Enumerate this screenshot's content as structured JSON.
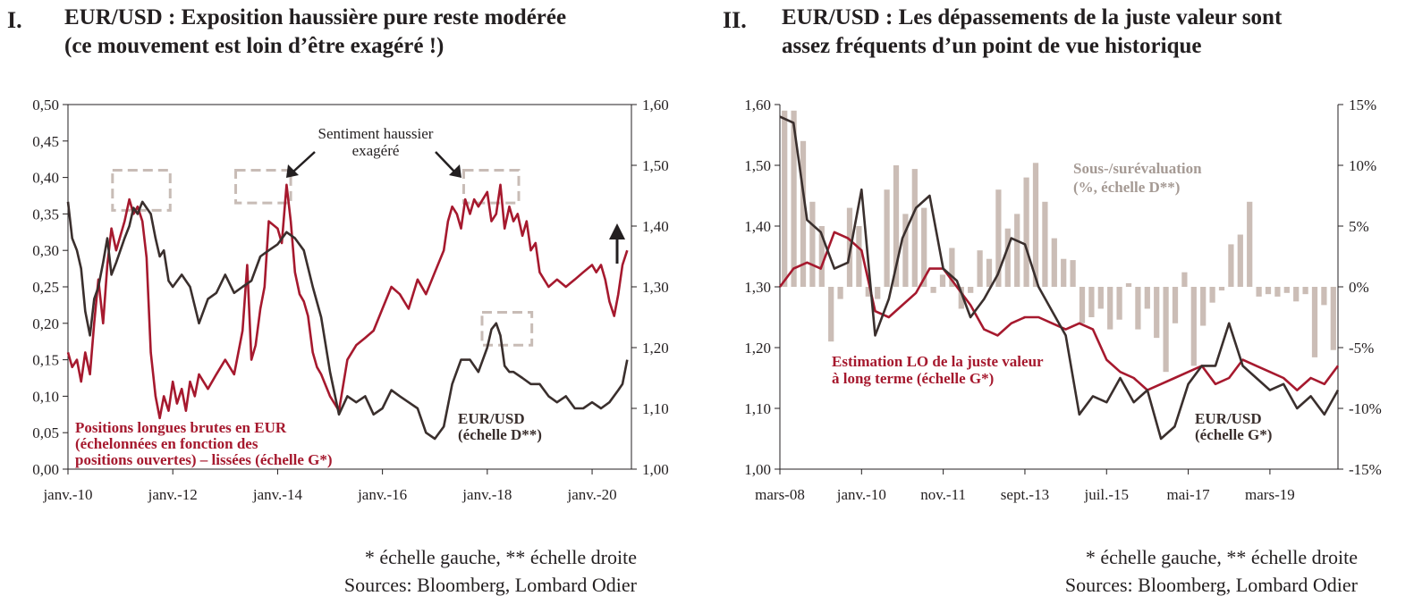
{
  "panels": [
    {
      "number": "I.",
      "title_lines": [
        "EUR/USD : Exposition haussière pure reste modérée",
        "(ce mouvement est loin d’être exagéré !)"
      ],
      "notes": [
        "* échelle gauche, ** échelle droite",
        "Sources: Bloomberg, Lombard Odier"
      ]
    },
    {
      "number": "II.",
      "title_lines": [
        "EUR/USD : Les dépassements de la juste valeur sont",
        "assez fréquents d’un point de vue historique"
      ],
      "notes": [
        "* échelle gauche, ** échelle droite",
        "Sources: Bloomberg, Lombard Odier"
      ]
    }
  ],
  "colors": {
    "red": "#a6192e",
    "dark": "#3a2f2d",
    "bar": "#cbbdb6",
    "dash": "#c8bcb6",
    "axis": "#231f20"
  },
  "chart_data": [
    {
      "type": "line",
      "title": "EUR/USD : Exposition haussière pure reste modérée (ce mouvement est loin d’être exagéré !)",
      "x_tick_labels": [
        "janv.-10",
        "janv.-12",
        "janv.-14",
        "janv.-16",
        "janv.-18",
        "janv.-20"
      ],
      "x_tick_years": [
        2010,
        2012,
        2014,
        2016,
        2018,
        2020
      ],
      "xlim": [
        2010.0,
        2020.75
      ],
      "y_left": {
        "ylim": [
          0,
          0.5
        ],
        "ticks": [
          "0,00",
          "0,05",
          "0,10",
          "0,15",
          "0,20",
          "0,25",
          "0,30",
          "0,35",
          "0,40",
          "0,45",
          "0,50"
        ]
      },
      "y_right": {
        "ylim": [
          1.0,
          1.6
        ],
        "ticks": [
          "1,00",
          "1,10",
          "1,20",
          "1,30",
          "1,40",
          "1,50",
          "1,60"
        ]
      },
      "grid": false,
      "series": [
        {
          "name": "Positions longues brutes en EUR (échelonnées en fonction des positions ouvertes) – lissées (échelle G*)",
          "axis": "left",
          "color_key": "red",
          "x": [
            2010.0,
            2010.08,
            2010.17,
            2010.25,
            2010.33,
            2010.42,
            2010.5,
            2010.58,
            2010.67,
            2010.75,
            2010.83,
            2010.92,
            2011.0,
            2011.08,
            2011.17,
            2011.25,
            2011.33,
            2011.42,
            2011.5,
            2011.58,
            2011.67,
            2011.75,
            2011.83,
            2011.92,
            2012.0,
            2012.08,
            2012.17,
            2012.25,
            2012.33,
            2012.42,
            2012.5,
            2012.67,
            2012.83,
            2013.0,
            2013.17,
            2013.33,
            2013.42,
            2013.5,
            2013.58,
            2013.67,
            2013.75,
            2013.83,
            2014.0,
            2014.08,
            2014.17,
            2014.25,
            2014.33,
            2014.42,
            2014.5,
            2014.58,
            2014.67,
            2014.75,
            2014.83,
            2015.0,
            2015.17,
            2015.33,
            2015.5,
            2015.67,
            2015.83,
            2016.0,
            2016.17,
            2016.33,
            2016.5,
            2016.67,
            2016.83,
            2017.0,
            2017.17,
            2017.25,
            2017.33,
            2017.42,
            2017.5,
            2017.58,
            2017.67,
            2017.75,
            2017.83,
            2018.0,
            2018.08,
            2018.17,
            2018.25,
            2018.33,
            2018.42,
            2018.5,
            2018.58,
            2018.67,
            2018.75,
            2018.83,
            2018.92,
            2019.0,
            2019.17,
            2019.33,
            2019.5,
            2019.67,
            2019.83,
            2020.0,
            2020.08,
            2020.17,
            2020.25,
            2020.33,
            2020.42,
            2020.5,
            2020.58,
            2020.67
          ],
          "y": [
            0.16,
            0.14,
            0.15,
            0.12,
            0.16,
            0.13,
            0.2,
            0.26,
            0.2,
            0.28,
            0.33,
            0.3,
            0.32,
            0.34,
            0.37,
            0.35,
            0.36,
            0.34,
            0.29,
            0.16,
            0.1,
            0.07,
            0.1,
            0.08,
            0.12,
            0.09,
            0.11,
            0.08,
            0.12,
            0.1,
            0.13,
            0.11,
            0.13,
            0.15,
            0.13,
            0.19,
            0.28,
            0.15,
            0.17,
            0.22,
            0.25,
            0.34,
            0.33,
            0.31,
            0.39,
            0.34,
            0.27,
            0.24,
            0.23,
            0.21,
            0.16,
            0.14,
            0.13,
            0.1,
            0.08,
            0.15,
            0.17,
            0.18,
            0.19,
            0.22,
            0.25,
            0.24,
            0.22,
            0.26,
            0.24,
            0.27,
            0.3,
            0.34,
            0.36,
            0.35,
            0.33,
            0.37,
            0.35,
            0.37,
            0.36,
            0.38,
            0.34,
            0.35,
            0.39,
            0.33,
            0.36,
            0.34,
            0.35,
            0.32,
            0.34,
            0.3,
            0.31,
            0.27,
            0.25,
            0.26,
            0.25,
            0.26,
            0.27,
            0.28,
            0.27,
            0.28,
            0.26,
            0.23,
            0.21,
            0.24,
            0.28,
            0.3
          ]
        },
        {
          "name": "EUR/USD (échelle D**)",
          "axis": "right",
          "color_key": "dark",
          "x": [
            2010.0,
            2010.08,
            2010.17,
            2010.25,
            2010.33,
            2010.42,
            2010.5,
            2010.58,
            2010.67,
            2010.75,
            2010.83,
            2010.92,
            2011.0,
            2011.08,
            2011.17,
            2011.25,
            2011.33,
            2011.42,
            2011.5,
            2011.58,
            2011.67,
            2011.75,
            2011.83,
            2011.92,
            2012.0,
            2012.17,
            2012.33,
            2012.5,
            2012.67,
            2012.83,
            2013.0,
            2013.17,
            2013.33,
            2013.5,
            2013.67,
            2013.83,
            2014.0,
            2014.17,
            2014.33,
            2014.5,
            2014.67,
            2014.83,
            2015.0,
            2015.17,
            2015.33,
            2015.5,
            2015.67,
            2015.83,
            2016.0,
            2016.17,
            2016.33,
            2016.5,
            2016.67,
            2016.83,
            2017.0,
            2017.17,
            2017.33,
            2017.5,
            2017.67,
            2017.83,
            2018.0,
            2018.08,
            2018.17,
            2018.25,
            2018.33,
            2018.42,
            2018.5,
            2018.67,
            2018.83,
            2019.0,
            2019.17,
            2019.33,
            2019.5,
            2019.67,
            2019.83,
            2020.0,
            2020.17,
            2020.33,
            2020.5,
            2020.58,
            2020.67
          ],
          "y": [
            1.44,
            1.38,
            1.36,
            1.33,
            1.26,
            1.22,
            1.28,
            1.3,
            1.34,
            1.38,
            1.32,
            1.34,
            1.36,
            1.38,
            1.4,
            1.43,
            1.42,
            1.44,
            1.43,
            1.42,
            1.38,
            1.35,
            1.36,
            1.31,
            1.3,
            1.32,
            1.3,
            1.24,
            1.28,
            1.29,
            1.32,
            1.29,
            1.3,
            1.31,
            1.35,
            1.36,
            1.37,
            1.39,
            1.38,
            1.36,
            1.3,
            1.25,
            1.16,
            1.09,
            1.12,
            1.11,
            1.12,
            1.09,
            1.1,
            1.13,
            1.12,
            1.11,
            1.1,
            1.06,
            1.05,
            1.07,
            1.14,
            1.18,
            1.18,
            1.16,
            1.2,
            1.23,
            1.24,
            1.22,
            1.17,
            1.16,
            1.16,
            1.15,
            1.14,
            1.14,
            1.12,
            1.11,
            1.12,
            1.1,
            1.1,
            1.11,
            1.1,
            1.11,
            1.13,
            1.14,
            1.18
          ]
        }
      ],
      "annotations": [
        "Sentiment haussier exagéré"
      ],
      "legend_labels": [
        [
          "Positions longues brutes en EUR",
          "(échelonnées en fonction des",
          "positions ouvertes) – lissées (échelle G*)"
        ],
        [
          "EUR/USD",
          "(échelle D**)"
        ]
      ],
      "highlight_boxes": [
        {
          "x": [
            2010.85,
            2011.95
          ],
          "y": [
            0.355,
            0.41
          ]
        },
        {
          "x": [
            2013.2,
            2014.25
          ],
          "y": [
            0.365,
            0.41
          ]
        },
        {
          "x": [
            2017.55,
            2018.6
          ],
          "y": [
            0.365,
            0.41
          ]
        },
        {
          "x": [
            2017.9,
            2018.85
          ],
          "y": [
            0.17,
            0.215
          ]
        }
      ]
    },
    {
      "type": "bar+line",
      "title": "EUR/USD : Les dépassements de la juste valeur sont assez fréquents d’un point de vue historique",
      "x_tick_labels": [
        "mars-08",
        "janv.-10",
        "nov.-11",
        "sept.-13",
        "juil.-15",
        "mai-17",
        "mars-19"
      ],
      "x_tick_positions": [
        0,
        6,
        12,
        18,
        24,
        30,
        36
      ],
      "xlim": [
        0,
        41
      ],
      "y_left": {
        "ylim": [
          1.0,
          1.6
        ],
        "ticks": [
          "1,00",
          "1,10",
          "1,20",
          "1,30",
          "1,40",
          "1,50",
          "1,60"
        ]
      },
      "y_right": {
        "ylim": [
          -15,
          15
        ],
        "ticks": [
          "-15%",
          "-10%",
          "-5%",
          "0%",
          "5%",
          "10%",
          "15%"
        ]
      },
      "grid": false,
      "bars": {
        "name": "Sous-/surévaluation (%, échelle D**)",
        "axis": "right",
        "color_key": "bar",
        "values": [
          14.5,
          14.5,
          12,
          7,
          5,
          -4.5,
          -1,
          6.5,
          5,
          -0.8,
          -1,
          8,
          10,
          6,
          9.7,
          6.5,
          -0.5,
          1,
          3.2,
          -1.8,
          -0.5,
          3,
          2.3,
          8,
          4.8,
          6,
          9,
          10.2,
          7,
          4,
          2.3,
          2.2,
          -3,
          -2.5,
          -1.8,
          -3.5,
          -2.7,
          0.3,
          -3.5,
          -1.8,
          -4.2,
          -7,
          -3,
          1.2,
          -6.5,
          -3.2,
          -1.3,
          -0.3,
          3.5,
          4.3,
          7,
          -0.8,
          -0.6,
          -0.8,
          -0.5,
          -1.2,
          -0.6,
          -5.8,
          -1.5,
          -5.2
        ]
      },
      "series": [
        {
          "name": "Estimation LO de la juste valeur à long terme (échelle G*)",
          "axis": "left",
          "color_key": "red",
          "x": [
            0,
            1,
            2,
            3,
            4,
            5,
            6,
            7,
            8,
            9,
            10,
            11,
            12,
            13,
            14,
            15,
            16,
            17,
            18,
            19,
            20,
            21,
            22,
            23,
            24,
            25,
            26,
            27,
            28,
            29,
            30,
            31,
            32,
            33,
            34,
            35,
            36,
            37,
            38,
            39,
            40,
            41
          ],
          "y": [
            1.3,
            1.33,
            1.34,
            1.33,
            1.39,
            1.38,
            1.36,
            1.26,
            1.25,
            1.27,
            1.29,
            1.33,
            1.33,
            1.3,
            1.27,
            1.23,
            1.22,
            1.24,
            1.25,
            1.25,
            1.24,
            1.23,
            1.24,
            1.23,
            1.18,
            1.16,
            1.15,
            1.13,
            1.14,
            1.15,
            1.16,
            1.17,
            1.14,
            1.15,
            1.18,
            1.17,
            1.16,
            1.15,
            1.13,
            1.15,
            1.14,
            1.17
          ]
        },
        {
          "name": "EUR/USD (échelle G*)",
          "axis": "left",
          "color_key": "dark",
          "x": [
            0,
            1,
            2,
            3,
            4,
            5,
            6,
            7,
            8,
            9,
            10,
            11,
            12,
            13,
            14,
            15,
            16,
            17,
            18,
            19,
            20,
            21,
            22,
            23,
            24,
            25,
            26,
            27,
            28,
            29,
            30,
            31,
            32,
            33,
            34,
            35,
            36,
            37,
            38,
            39,
            40,
            41
          ],
          "y": [
            1.58,
            1.57,
            1.41,
            1.39,
            1.33,
            1.34,
            1.46,
            1.22,
            1.28,
            1.38,
            1.43,
            1.45,
            1.33,
            1.31,
            1.25,
            1.28,
            1.32,
            1.38,
            1.37,
            1.3,
            1.26,
            1.22,
            1.09,
            1.12,
            1.11,
            1.15,
            1.11,
            1.13,
            1.05,
            1.07,
            1.14,
            1.17,
            1.17,
            1.24,
            1.17,
            1.15,
            1.13,
            1.14,
            1.1,
            1.12,
            1.09,
            1.13
          ]
        }
      ],
      "legend_labels": [
        [
          "Sous-/surévaluation",
          "(%, échelle D**)"
        ],
        [
          "Estimation LO de la juste valeur",
          "à long terme (échelle G*)"
        ],
        [
          "EUR/USD",
          "(échelle G*)"
        ]
      ]
    }
  ]
}
